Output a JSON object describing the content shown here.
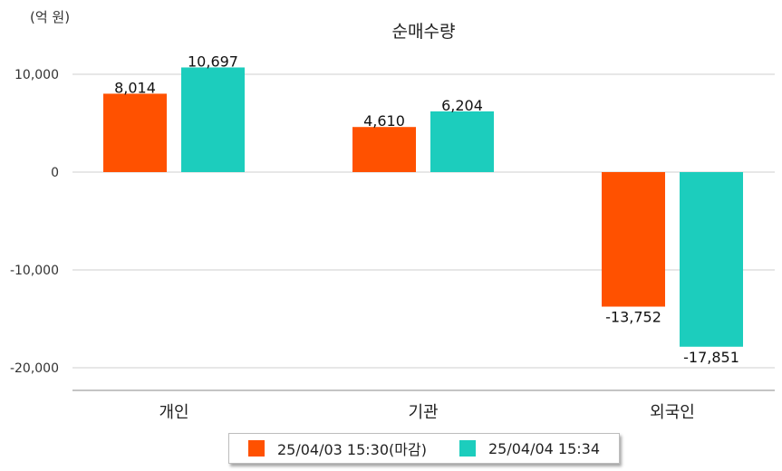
{
  "unit_label": "(억 원)",
  "chart_data": {
    "type": "bar",
    "title": "순매수량",
    "categories": [
      "개인",
      "기관",
      "외국인"
    ],
    "series": [
      {
        "name": "25/04/03 15:30(마감)",
        "color": "#ff5100",
        "values": [
          8014,
          4610,
          -13752
        ]
      },
      {
        "name": "25/04/04 15:34",
        "color": "#1ccdbd",
        "values": [
          10697,
          6204,
          -17851
        ]
      }
    ],
    "y_ticks": [
      10000,
      0,
      -10000,
      -20000
    ],
    "y_tick_labels": [
      "10,000",
      "0",
      "-10,000",
      "-20,000"
    ],
    "ylim": [
      -22500,
      12500
    ],
    "grid": true,
    "legend_position": "bottom"
  }
}
